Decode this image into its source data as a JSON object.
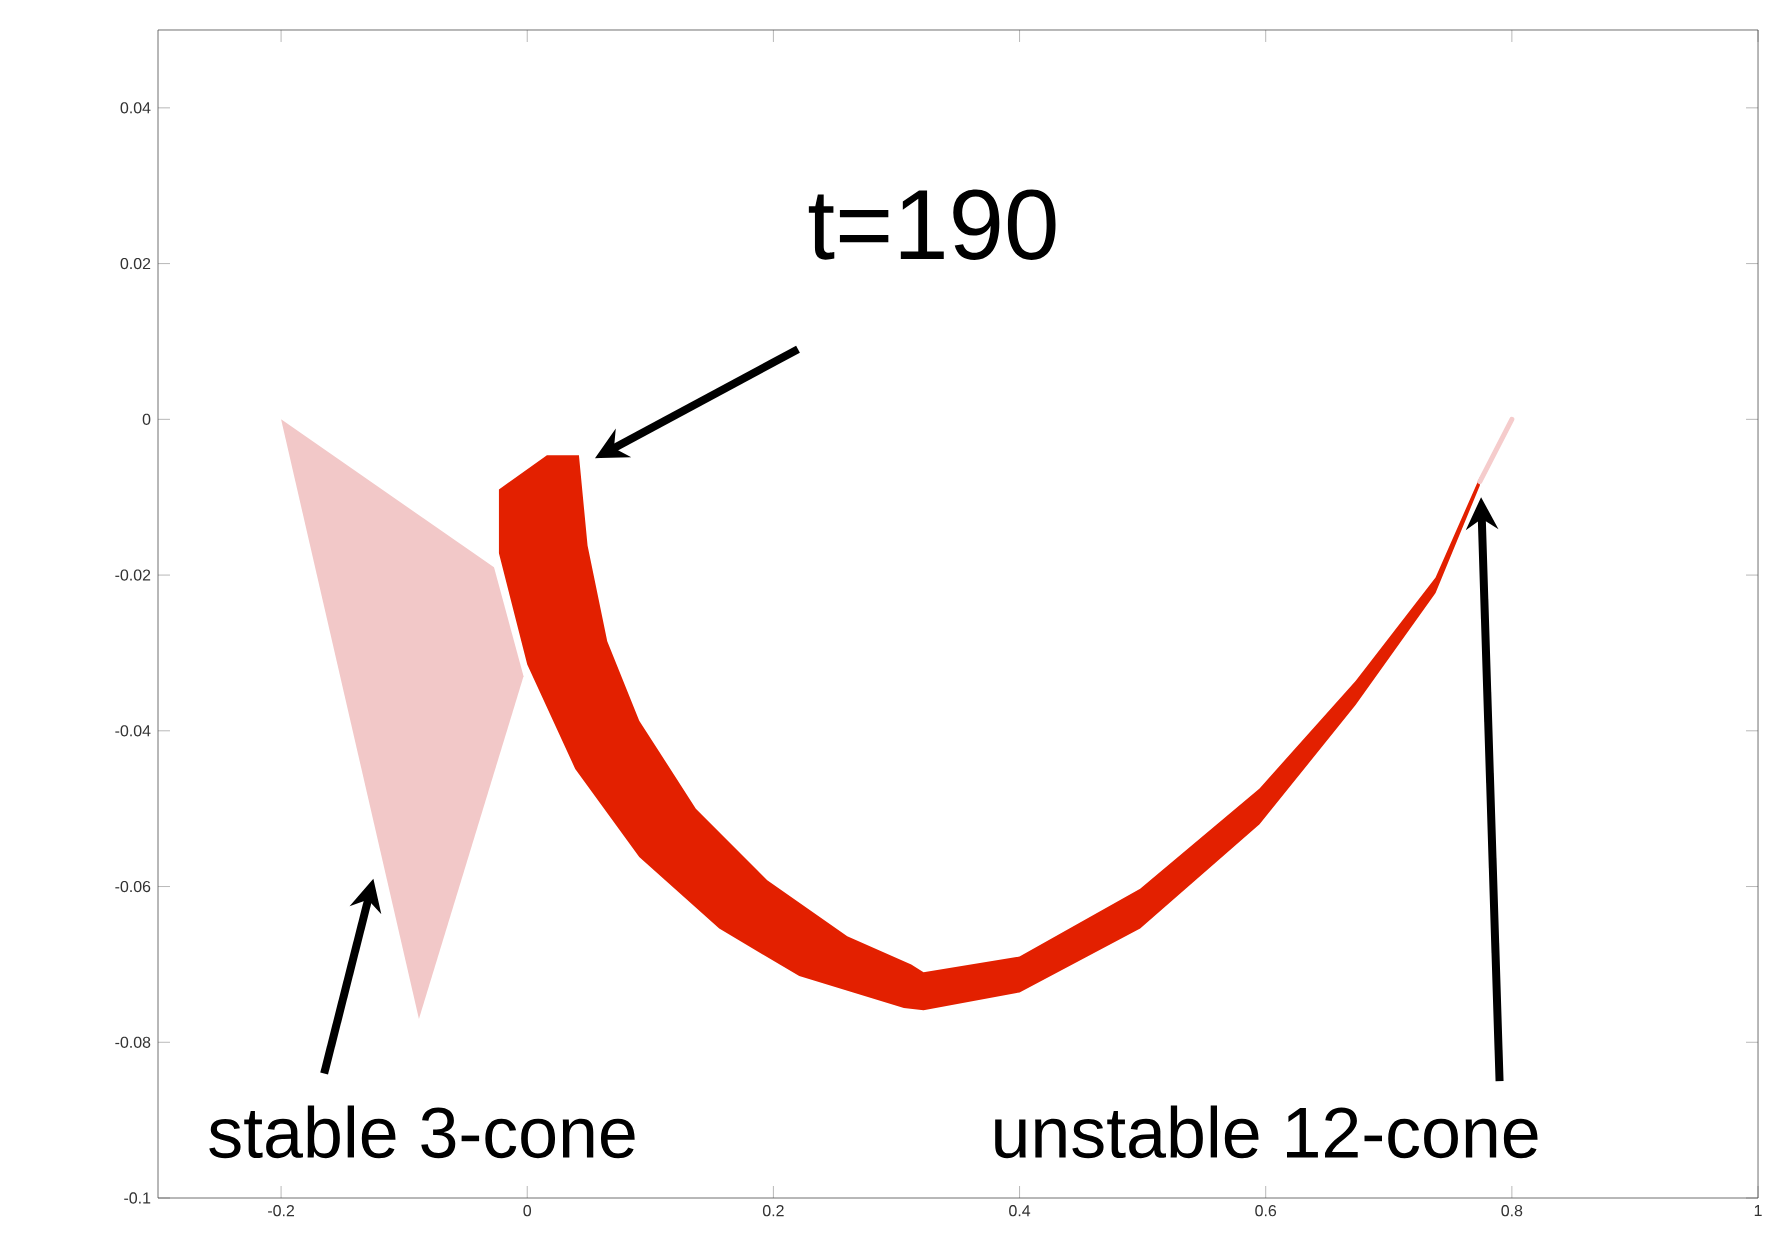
{
  "chart_data": {
    "type": "area",
    "xlim": [
      -0.3,
      1
    ],
    "ylim": [
      -0.1,
      0.05
    ],
    "xticks": [
      -0.2,
      0,
      0.2,
      0.4,
      0.6,
      0.8,
      1
    ],
    "yticks": [
      -0.1,
      -0.08,
      -0.06,
      -0.04,
      -0.02,
      0,
      0.02,
      0.04
    ],
    "series": [
      {
        "type": "area",
        "color": "#f2c8c8",
        "x": [
          -0.2,
          -0.027,
          -0.003,
          -0.088
        ],
        "values": [
          0,
          -0.019,
          -0.033,
          -0.077
        ]
      },
      {
        "color": "#e32000",
        "x": [
          -0.023,
          -0.023,
          0,
          0.039,
          0.091,
          0.156,
          0.221,
          0.306,
          0.322,
          0.4,
          0.498,
          0.595,
          0.673,
          0.738,
          0.774,
          0.774,
          0.738,
          0.673,
          0.595,
          0.498,
          0.4,
          0.322,
          0.312,
          0.26,
          0.195,
          0.137,
          0.091,
          0.065,
          0.049,
          0.042,
          0.016
        ],
        "values": [
          -0.009,
          -0.0172,
          -0.0315,
          -0.0449,
          -0.0562,
          -0.0654,
          -0.0715,
          -0.0756,
          -0.0759,
          -0.0736,
          -0.0654,
          -0.052,
          -0.0367,
          -0.0223,
          -0.0085,
          -0.0074,
          -0.0203,
          -0.0336,
          -0.0474,
          -0.0603,
          -0.069,
          -0.071,
          -0.07,
          -0.0664,
          -0.0592,
          -0.05,
          -0.0387,
          -0.0285,
          -0.0162,
          -0.0046,
          -0.0046
        ]
      },
      {
        "type": "line",
        "color": "#f5cccc",
        "x": [
          0.774,
          0.8
        ],
        "values": [
          -0.008,
          0
        ]
      }
    ],
    "annotations": [
      "t=190",
      "stable 3-cone",
      "unstable 12-cone"
    ]
  }
}
